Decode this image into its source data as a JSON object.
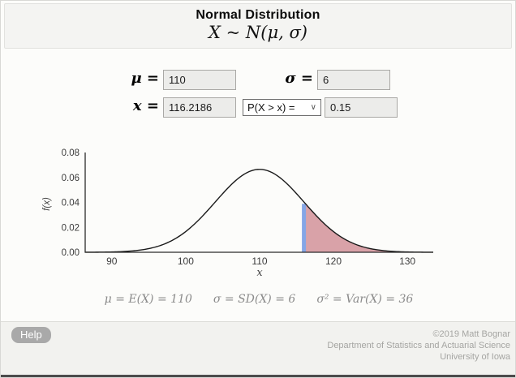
{
  "header": {
    "title": "Normal Distribution",
    "notation": "X ~ N(μ, σ)"
  },
  "controls": {
    "mu_label": "μ =",
    "sigma_label": "σ =",
    "x_label": "x =",
    "mu_value": "110",
    "sigma_value": "6",
    "x_value": "116.2186",
    "probability_select": {
      "selected": "P(X > x) = ",
      "chevron": "∨"
    },
    "probability_value": "0.15"
  },
  "chart_data": {
    "type": "area",
    "distribution": "normal",
    "mu": 110,
    "sigma": 6,
    "x_value": 116.2186,
    "probability": 0.15,
    "shaded_side": "right",
    "peak_density": 0.0665,
    "x_range": [
      86.4,
      133.5
    ],
    "y_max": 0.08,
    "x_ticks": [
      90,
      100,
      110,
      120,
      130
    ],
    "y_ticks": [
      0,
      0.02,
      0.04,
      0.06,
      0.08
    ],
    "xlabel": "x",
    "ylabel": "f(x)",
    "grid": false,
    "legend": false,
    "colors": {
      "curve": "#1a1a1a",
      "shade": "#d9a2a8",
      "marker": "#85a6e6",
      "axis": "#2b2b2b",
      "tick_text": "#3c3c3c"
    }
  },
  "stats": {
    "mean": "μ = E(X) = 110",
    "sd": "σ = SD(X) = 6",
    "variance": "σ² = Var(X) = 36"
  },
  "footer": {
    "help_label": "Help",
    "credits": [
      "©2019 Matt Bognar",
      "Department of Statistics and Actuarial Science",
      "University of Iowa"
    ]
  }
}
